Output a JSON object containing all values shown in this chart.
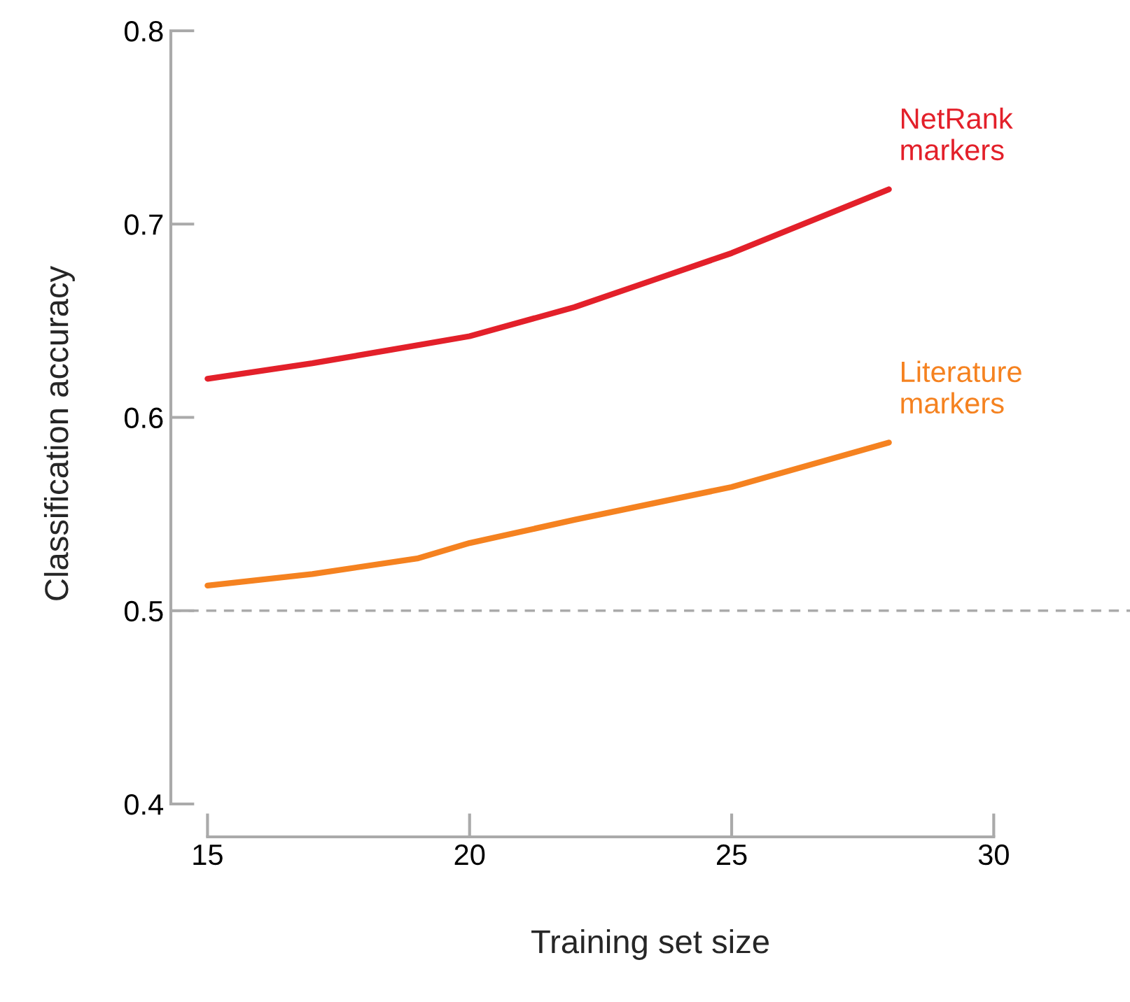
{
  "chart_data": {
    "type": "line",
    "xlabel": "Training set size",
    "ylabel": "Classification accuracy",
    "xlim": [
      14.3,
      32.6
    ],
    "ylim": [
      0.383,
      0.8
    ],
    "xticks": [
      15,
      20,
      25,
      30
    ],
    "yticks": [
      0.4,
      0.5,
      0.6,
      0.7,
      0.8
    ],
    "grid": false,
    "legend": false,
    "marker": "none",
    "line_style": "solid",
    "series": [
      {
        "name": "NetRank\nmarkers",
        "color": "#e3202a",
        "x": [
          15,
          17,
          18.5,
          20,
          22,
          23.5,
          25,
          28
        ],
        "values": [
          0.62,
          0.628,
          0.635,
          0.642,
          0.657,
          0.671,
          0.685,
          0.718
        ]
      },
      {
        "name": "Literature\nmarkers",
        "color": "#f58220",
        "x": [
          15,
          17,
          19,
          20,
          22,
          25,
          28
        ],
        "values": [
          0.513,
          0.519,
          0.527,
          0.535,
          0.547,
          0.564,
          0.587
        ]
      }
    ],
    "ref_lines": [
      {
        "axis": "y",
        "value": 0.5,
        "label": null,
        "color": "#aaaaaa",
        "line_style": "dashed"
      }
    ]
  }
}
